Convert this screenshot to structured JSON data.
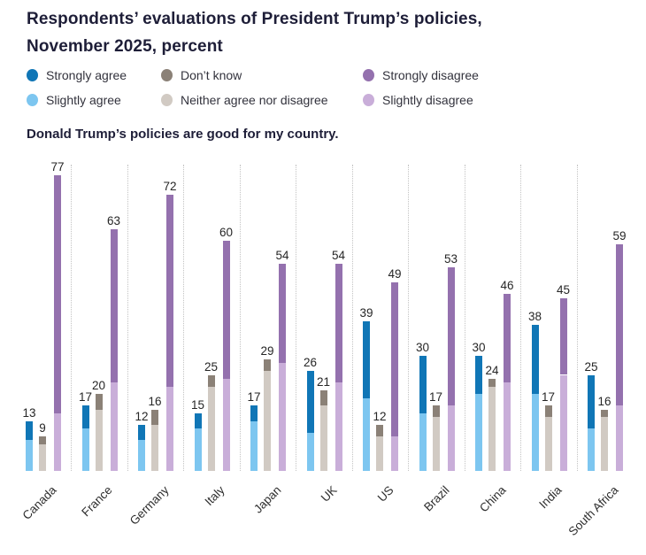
{
  "header": {
    "title_line1": "Respondents’ evaluations of President Trump’s policies,",
    "title_line2": "November 2025, percent",
    "subtitle": "Donald Trump’s policies are good for my country."
  },
  "legend": {
    "items": [
      {
        "label": "Strongly agree",
        "color": "#1076b6"
      },
      {
        "label": "Don’t know",
        "color": "#8b8177"
      },
      {
        "label": "Strongly disagree",
        "color": "#9471ae"
      },
      {
        "label": "Slightly agree",
        "color": "#7dc6f0"
      },
      {
        "label": "Neither agree nor disagree",
        "color": "#d1cac3"
      },
      {
        "label": "Slightly disagree",
        "color": "#c9aed9"
      }
    ]
  },
  "chart_data": {
    "type": "bar",
    "stacked": true,
    "unit": "percent",
    "title": "Respondents’ evaluations of President Trump’s policies, November 2025, percent",
    "subtitle": "Donald Trump’s policies are good for my country.",
    "categories": [
      "Canada",
      "France",
      "Germany",
      "Italy",
      "Japan",
      "UK",
      "US",
      "Brazil",
      "China",
      "India",
      "South Africa"
    ],
    "series": [
      {
        "name": "Strongly agree",
        "stack": "agree",
        "position": "top",
        "color": "#1076b6",
        "values": [
          5,
          6,
          4,
          4,
          4,
          16,
          20,
          15,
          10,
          18,
          14
        ]
      },
      {
        "name": "Slightly agree",
        "stack": "agree",
        "position": "bottom",
        "color": "#7dc6f0",
        "values": [
          8,
          11,
          8,
          11,
          13,
          10,
          19,
          15,
          20,
          20,
          11
        ]
      },
      {
        "name": "Don’t know",
        "stack": "neutral",
        "position": "top",
        "color": "#8b8177",
        "values": [
          2,
          4,
          4,
          3,
          3,
          4,
          3,
          3,
          2,
          3,
          2
        ]
      },
      {
        "name": "Neither agree nor disagree",
        "stack": "neutral",
        "position": "bottom",
        "color": "#d1cac3",
        "values": [
          7,
          16,
          12,
          22,
          26,
          17,
          9,
          14,
          22,
          14,
          14
        ]
      },
      {
        "name": "Strongly disagree",
        "stack": "disagree",
        "position": "top",
        "color": "#9471ae",
        "values": [
          62,
          40,
          50,
          36,
          26,
          31,
          40,
          36,
          23,
          20,
          42
        ]
      },
      {
        "name": "Slightly disagree",
        "stack": "disagree",
        "position": "bottom",
        "color": "#c9aed9",
        "values": [
          15,
          23,
          22,
          24,
          28,
          23,
          9,
          17,
          23,
          25,
          17
        ]
      }
    ],
    "stack_totals": {
      "agree": [
        13,
        17,
        12,
        15,
        17,
        26,
        39,
        30,
        30,
        38,
        25
      ],
      "neutral": [
        9,
        20,
        16,
        25,
        29,
        21,
        12,
        17,
        24,
        17,
        16
      ],
      "disagree": [
        77,
        63,
        72,
        60,
        54,
        54,
        49,
        53,
        46,
        45,
        59
      ]
    },
    "ylim": [
      0,
      80
    ],
    "axes": "no y-axis shown; stack totals printed above each bar",
    "grid": "vertical dotted separators between countries",
    "legend_position": "top, two rows"
  }
}
